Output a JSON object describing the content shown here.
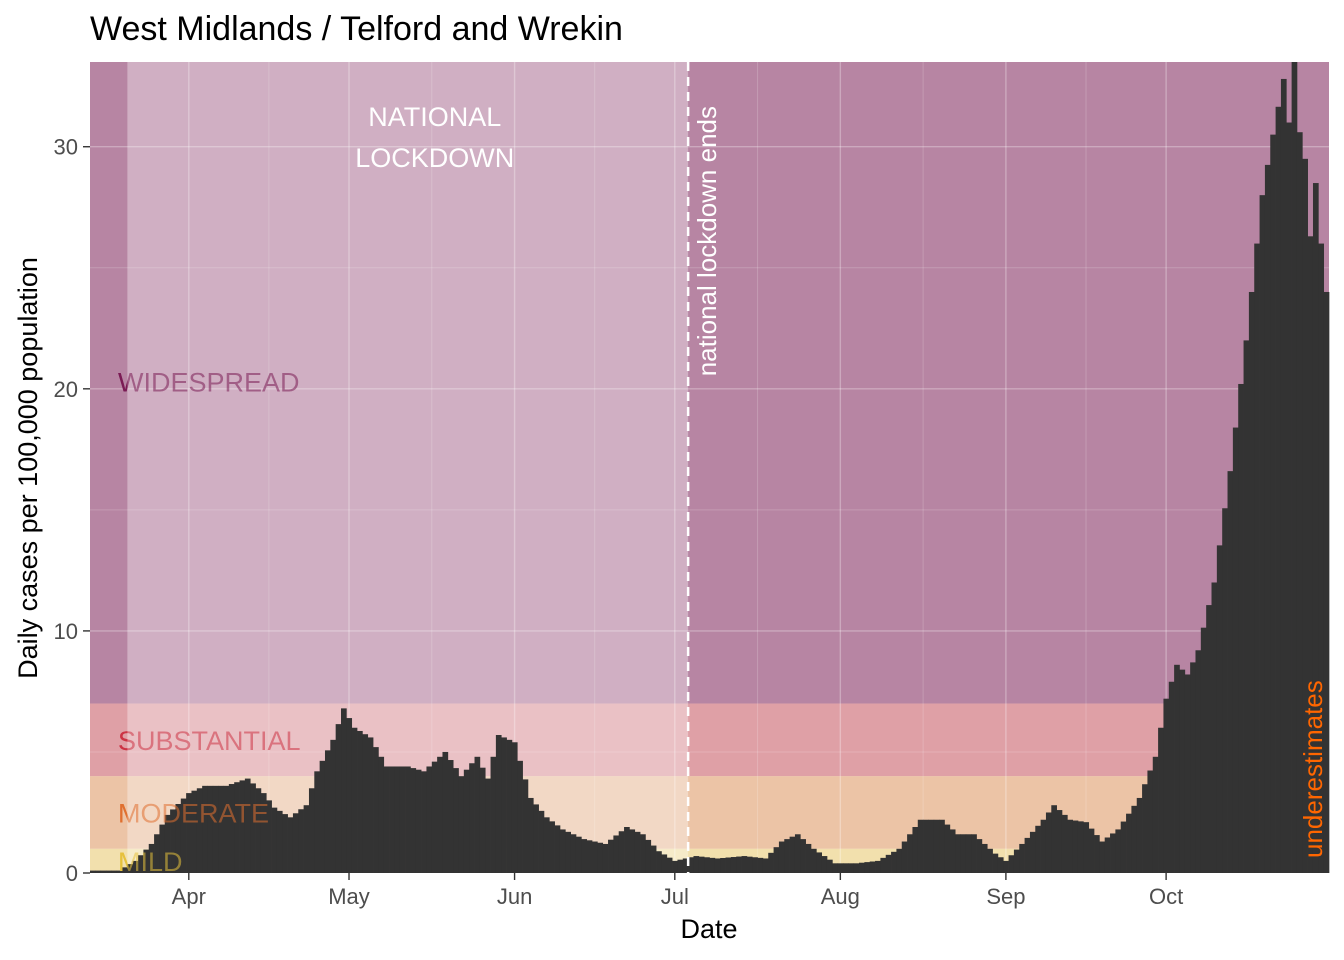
{
  "chart_data": {
    "type": "bar",
    "title": "West Midlands / Telford and Wrekin",
    "xlabel": "Date",
    "ylabel": "Daily cases per 100,000 population",
    "x_start": "2020-03-14",
    "x_end": "2020-10-31",
    "ylim": [
      0,
      33.5
    ],
    "yticks": [
      0,
      10,
      20,
      30
    ],
    "xticks": [
      {
        "date": "2020-04-01",
        "label": "Apr"
      },
      {
        "date": "2020-05-01",
        "label": "May"
      },
      {
        "date": "2020-06-01",
        "label": "Jun"
      },
      {
        "date": "2020-07-01",
        "label": "Jul"
      },
      {
        "date": "2020-08-01",
        "label": "Aug"
      },
      {
        "date": "2020-09-01",
        "label": "Sep"
      },
      {
        "date": "2020-10-01",
        "label": "Oct"
      }
    ],
    "grid": true,
    "series_color": "#333333",
    "anchors": [
      [
        "2020-03-14",
        0.1
      ],
      [
        "2020-03-19",
        0.1
      ],
      [
        "2020-03-22",
        0.5
      ],
      [
        "2020-03-25",
        1.2
      ],
      [
        "2020-03-28",
        2.4
      ],
      [
        "2020-04-01",
        3.3
      ],
      [
        "2020-04-04",
        3.6
      ],
      [
        "2020-04-08",
        3.6
      ],
      [
        "2020-04-12",
        3.9
      ],
      [
        "2020-04-15",
        3.3
      ],
      [
        "2020-04-17",
        2.7
      ],
      [
        "2020-04-20",
        2.3
      ],
      [
        "2020-04-23",
        2.8
      ],
      [
        "2020-04-25",
        4.2
      ],
      [
        "2020-04-28",
        5.5
      ],
      [
        "2020-04-30",
        6.8
      ],
      [
        "2020-05-02",
        6.0
      ],
      [
        "2020-05-05",
        5.6
      ],
      [
        "2020-05-08",
        4.4
      ],
      [
        "2020-05-12",
        4.4
      ],
      [
        "2020-05-15",
        4.2
      ],
      [
        "2020-05-19",
        5.0
      ],
      [
        "2020-05-22",
        4.0
      ],
      [
        "2020-05-25",
        4.8
      ],
      [
        "2020-05-27",
        3.9
      ],
      [
        "2020-05-29",
        5.7
      ],
      [
        "2020-06-01",
        5.4
      ],
      [
        "2020-06-04",
        3.1
      ],
      [
        "2020-06-07",
        2.3
      ],
      [
        "2020-06-10",
        1.8
      ],
      [
        "2020-06-14",
        1.4
      ],
      [
        "2020-06-18",
        1.2
      ],
      [
        "2020-06-22",
        1.9
      ],
      [
        "2020-06-25",
        1.6
      ],
      [
        "2020-06-28",
        0.9
      ],
      [
        "2020-07-01",
        0.5
      ],
      [
        "2020-07-05",
        0.7
      ],
      [
        "2020-07-09",
        0.6
      ],
      [
        "2020-07-14",
        0.7
      ],
      [
        "2020-07-18",
        0.6
      ],
      [
        "2020-07-21",
        1.3
      ],
      [
        "2020-07-24",
        1.6
      ],
      [
        "2020-07-27",
        1.0
      ],
      [
        "2020-07-31",
        0.4
      ],
      [
        "2020-08-04",
        0.4
      ],
      [
        "2020-08-08",
        0.5
      ],
      [
        "2020-08-12",
        1.0
      ],
      [
        "2020-08-16",
        2.2
      ],
      [
        "2020-08-20",
        2.2
      ],
      [
        "2020-08-23",
        1.6
      ],
      [
        "2020-08-26",
        1.6
      ],
      [
        "2020-08-30",
        0.8
      ],
      [
        "2020-09-01",
        0.5
      ],
      [
        "2020-09-04",
        1.2
      ],
      [
        "2020-09-08",
        2.2
      ],
      [
        "2020-09-10",
        2.8
      ],
      [
        "2020-09-13",
        2.2
      ],
      [
        "2020-09-16",
        2.1
      ],
      [
        "2020-09-19",
        1.3
      ],
      [
        "2020-09-22",
        1.8
      ],
      [
        "2020-09-26",
        3.1
      ],
      [
        "2020-09-29",
        4.8
      ],
      [
        "2020-10-01",
        7.2
      ],
      [
        "2020-10-03",
        8.6
      ],
      [
        "2020-10-05",
        8.2
      ],
      [
        "2020-10-07",
        9.2
      ],
      [
        "2020-10-10",
        12.0
      ],
      [
        "2020-10-13",
        16.6
      ],
      [
        "2020-10-16",
        22.0
      ],
      [
        "2020-10-19",
        28.0
      ],
      [
        "2020-10-21",
        30.5
      ],
      [
        "2020-10-23",
        32.8
      ],
      [
        "2020-10-24",
        31.0
      ],
      [
        "2020-10-25",
        33.5
      ],
      [
        "2020-10-26",
        30.6
      ],
      [
        "2020-10-27",
        29.5
      ],
      [
        "2020-10-28",
        26.3
      ],
      [
        "2020-10-29",
        28.5
      ],
      [
        "2020-10-30",
        26.0
      ],
      [
        "2020-10-31",
        24.0
      ]
    ],
    "bands": [
      {
        "label": "WIDESPREAD",
        "from": 7,
        "to": 33.5,
        "fill": "#8b3a6b",
        "label_color": "#7a1b54",
        "label_y": 20.3
      },
      {
        "label": "SUBSTANTIAL",
        "from": 4,
        "to": 7,
        "fill": "#cc6670",
        "label_color": "#cc3344",
        "label_y": 5.5
      },
      {
        "label": "MODERATE",
        "from": 1,
        "to": 4,
        "fill": "#e0a070",
        "label_color": "#e07030",
        "label_y": 2.5
      },
      {
        "label": "MILD",
        "from": 0,
        "to": 1,
        "fill": "#eacd7a",
        "label_color": "#e6c13c",
        "label_y": 0.5
      }
    ],
    "band_label_clip_end": "2020-03-21",
    "lockdown": {
      "start": "2020-03-21",
      "end": "2020-07-04",
      "label_line1": "NATIONAL",
      "label_line2": "LOCKDOWN",
      "fill": "#ffffff"
    },
    "vline": {
      "date": "2020-07-04",
      "label": "national lockdown ends",
      "color": "#ffffff"
    },
    "underestimates": {
      "label": "underestimates",
      "color": "#ff6600"
    }
  }
}
